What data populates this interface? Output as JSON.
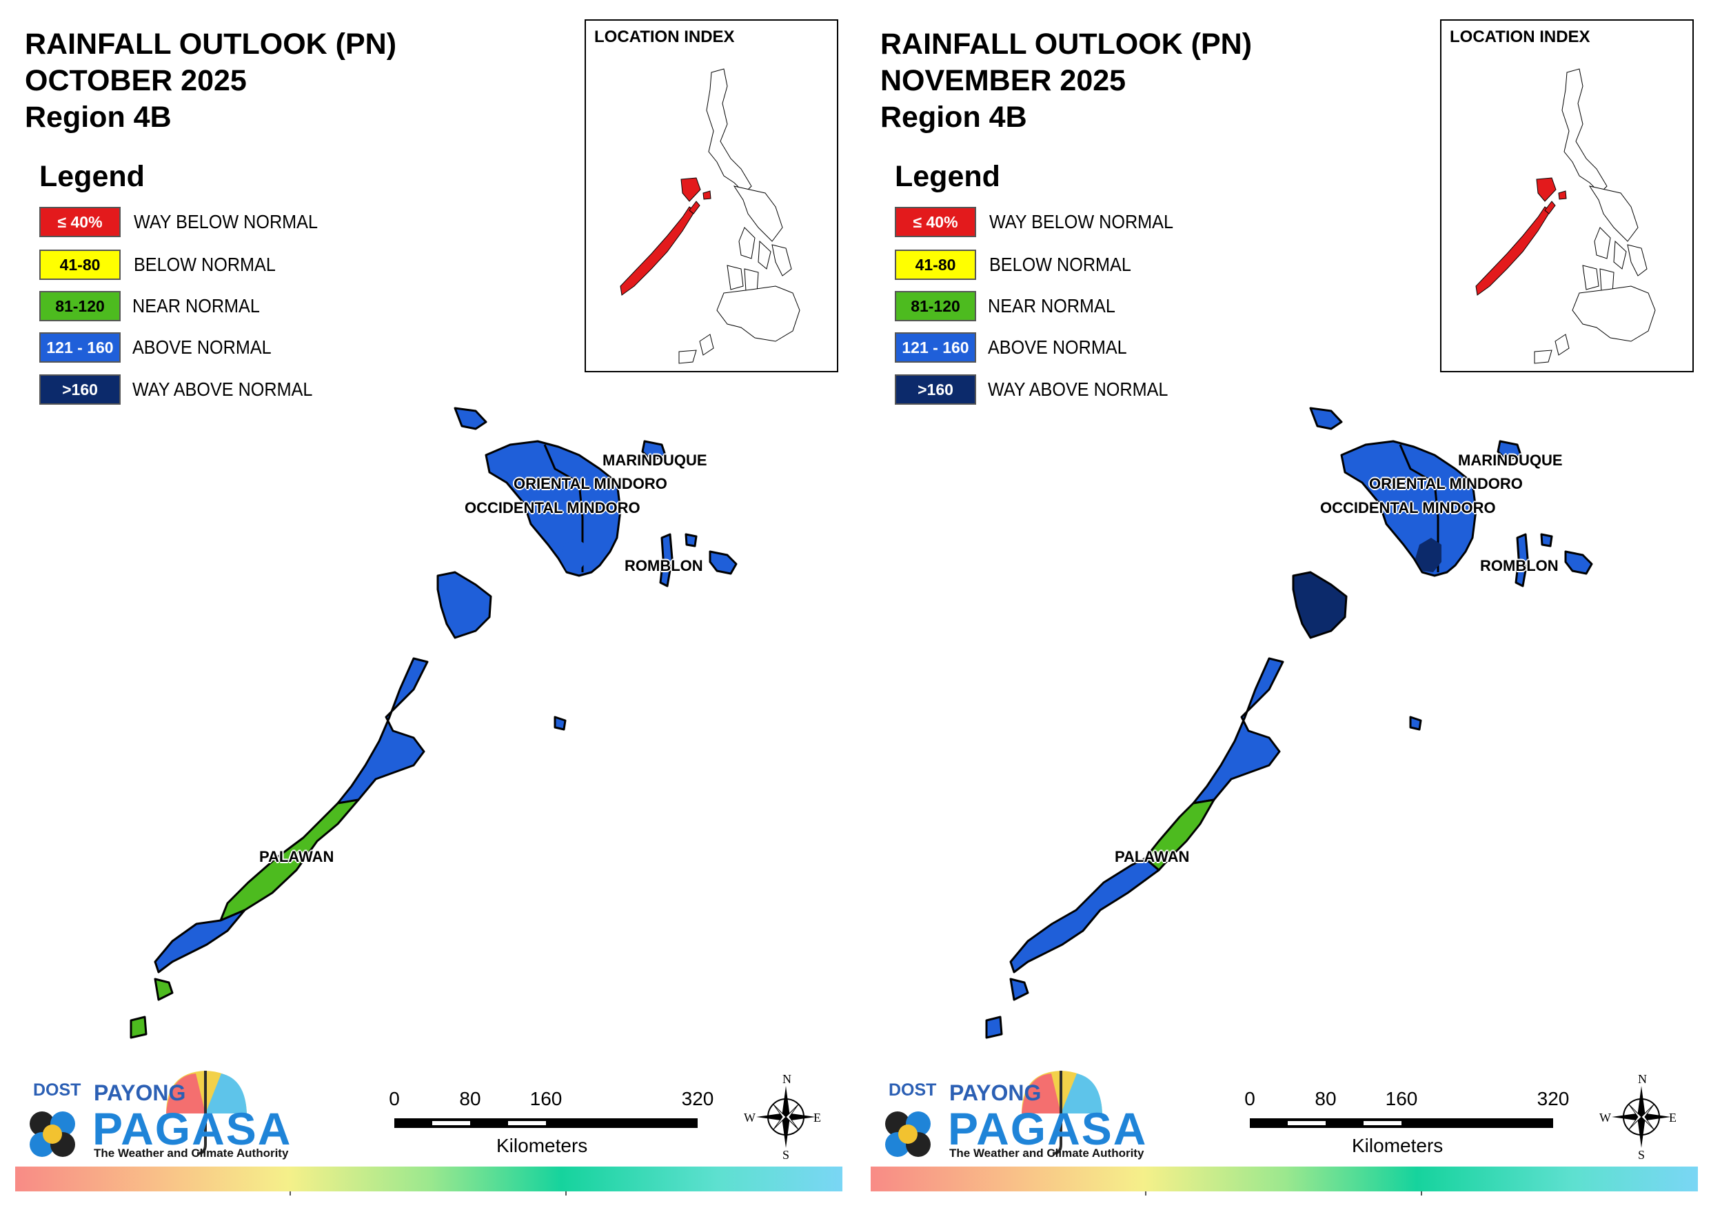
{
  "panels": [
    {
      "title": [
        "RAINFALL OUTLOOK (PN)",
        "OCTOBER 2025",
        "Region 4B"
      ],
      "legend": {
        "heading": "Legend",
        "items": [
          {
            "range": "≤ 40%",
            "label": "WAY BELOW NORMAL",
            "color": "#e31a1c",
            "text_color": "#ffffff"
          },
          {
            "range": "41-80",
            "label": "BELOW NORMAL",
            "color": "#ffff00",
            "text_color": "#000000"
          },
          {
            "range": "81-120",
            "label": "NEAR NORMAL",
            "color": "#4dbb1f",
            "text_color": "#000000"
          },
          {
            "range": "121 - 160",
            "label": "ABOVE NORMAL",
            "color": "#1f5fd9",
            "text_color": "#ffffff"
          },
          {
            "range": ">160",
            "label": "WAY ABOVE NORMAL",
            "color": "#0c2a6b",
            "text_color": "#ffffff"
          }
        ]
      },
      "inset_title": "LOCATION INDEX",
      "places": {
        "marinduque": "MARINDUQUE",
        "oriental": "ORIENTAL MINDORO",
        "occidental": "OCCIDENTAL MINDORO",
        "romblon": "ROMBLON",
        "palawan": "PALAWAN"
      },
      "scale": {
        "ticks": [
          "0",
          "80",
          "160",
          "320"
        ],
        "units": "Kilometers"
      },
      "compass": {
        "n": "N",
        "s": "S",
        "e": "E",
        "w": "W"
      },
      "logo": {
        "dost": "DOST",
        "payong": "PAYONG",
        "pagasa": "PAGASA",
        "tagline": "The Weather and Climate Authority"
      },
      "classes": {
        "mindoro": "ABOVE NORMAL",
        "mindoro_south": "ABOVE NORMAL",
        "calamian": "ABOVE NORMAL",
        "palawan_north": "ABOVE NORMAL",
        "palawan_central": "NEAR NORMAL",
        "palawan_south": "ABOVE NORMAL",
        "palawan_tip": "NEAR NORMAL"
      }
    },
    {
      "title": [
        "RAINFALL OUTLOOK (PN)",
        "NOVEMBER 2025",
        "Region 4B"
      ],
      "legend": {
        "heading": "Legend",
        "items": [
          {
            "range": "≤ 40%",
            "label": "WAY BELOW NORMAL",
            "color": "#e31a1c",
            "text_color": "#ffffff"
          },
          {
            "range": "41-80",
            "label": "BELOW NORMAL",
            "color": "#ffff00",
            "text_color": "#000000"
          },
          {
            "range": "81-120",
            "label": "NEAR NORMAL",
            "color": "#4dbb1f",
            "text_color": "#000000"
          },
          {
            "range": "121 - 160",
            "label": "ABOVE NORMAL",
            "color": "#1f5fd9",
            "text_color": "#ffffff"
          },
          {
            "range": ">160",
            "label": "WAY ABOVE NORMAL",
            "color": "#0c2a6b",
            "text_color": "#ffffff"
          }
        ]
      },
      "inset_title": "LOCATION INDEX",
      "places": {
        "marinduque": "MARINDUQUE",
        "oriental": "ORIENTAL MINDORO",
        "occidental": "OCCIDENTAL MINDORO",
        "romblon": "ROMBLON",
        "palawan": "PALAWAN"
      },
      "scale": {
        "ticks": [
          "0",
          "80",
          "160",
          "320"
        ],
        "units": "Kilometers"
      },
      "compass": {
        "n": "N",
        "s": "S",
        "e": "E",
        "w": "W"
      },
      "logo": {
        "dost": "DOST",
        "payong": "PAYONG",
        "pagasa": "PAGASA",
        "tagline": "The Weather and Climate Authority"
      },
      "classes": {
        "mindoro": "ABOVE NORMAL",
        "mindoro_south": "WAY ABOVE NORMAL",
        "calamian": "WAY ABOVE NORMAL",
        "palawan_north": "ABOVE NORMAL",
        "palawan_central": "NEAR NORMAL",
        "palawan_south": "ABOVE NORMAL",
        "palawan_tip": "ABOVE NORMAL"
      }
    }
  ]
}
